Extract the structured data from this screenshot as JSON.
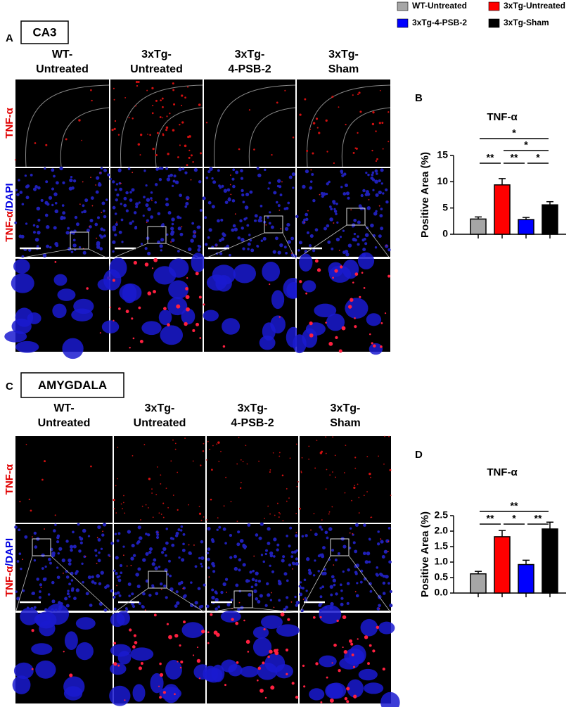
{
  "panels": [
    {
      "letter": "A",
      "region": "CA3",
      "columns": [
        [
          "WT-",
          "Untreated"
        ],
        [
          "3xTg-",
          "Untreated"
        ],
        [
          "3xTg-",
          "4-PSB-2"
        ],
        [
          "3xTg-",
          "Sham"
        ]
      ],
      "rows": [
        [
          "TNF-α"
        ],
        [
          "TNF-α",
          "/DAPI"
        ]
      ]
    },
    {
      "letter": "C",
      "region": "AMYGDALA",
      "columns": [
        [
          "WT-",
          "Untreated"
        ],
        [
          "3xTg-",
          "Untreated"
        ],
        [
          "3xTg-",
          "4-PSB-2"
        ],
        [
          "3xTg-",
          "Sham"
        ]
      ],
      "rows": [
        [
          "TNF-α"
        ],
        [
          "TNF-α",
          "/DAPI"
        ]
      ]
    }
  ],
  "chart_data": [
    {
      "type": "bar",
      "label": "B",
      "title": "TNF-α",
      "y_label": "Positive Area (%)",
      "ylim": [
        0,
        15
      ],
      "yticks": [
        0,
        5,
        10,
        15
      ],
      "series": [
        {
          "name": "WT-Untreated",
          "color": "#a6a6a6",
          "values": [
            2.9
          ],
          "errors": [
            0.4
          ]
        },
        {
          "name": "3xTg-Untreated",
          "color": "#ff0000",
          "values": [
            9.4
          ],
          "errors": [
            1.2
          ]
        },
        {
          "name": "3xTg-4-PSB-2",
          "color": "#0000ff",
          "values": [
            2.8
          ],
          "errors": [
            0.4
          ]
        },
        {
          "name": "3xTg-Sham",
          "color": "#000000",
          "values": [
            5.6
          ],
          "errors": [
            0.6
          ]
        }
      ],
      "significance": [
        {
          "label": "*",
          "from": 0,
          "to": 3
        },
        {
          "label": "*",
          "from": 1,
          "to": 3
        },
        {
          "label": "**",
          "from": 0,
          "to": 1
        },
        {
          "label": "**",
          "from": 1,
          "to": 2
        },
        {
          "label": "*",
          "from": 2,
          "to": 3
        }
      ]
    },
    {
      "type": "bar",
      "label": "D",
      "title": "TNF-α",
      "y_label": "Positive Area (%)",
      "ylim": [
        0,
        2.5
      ],
      "yticks": [
        {
          "value": 0,
          "label": "0.0"
        },
        0.5,
        {
          "value": 1,
          "label": "1.0"
        },
        1.5,
        {
          "value": 2,
          "label": "2.0"
        },
        2.5
      ],
      "series": [
        {
          "color": "#a6a6a6",
          "values": [
            0.62
          ],
          "errors": [
            0.08
          ]
        },
        {
          "color": "#ff0000",
          "values": [
            1.82
          ],
          "errors": [
            0.2
          ]
        },
        {
          "color": "#0000ff",
          "values": [
            0.92
          ],
          "errors": [
            0.14
          ]
        },
        {
          "color": "#000000",
          "values": [
            2.07
          ],
          "errors": [
            0.22
          ]
        }
      ],
      "significance": [
        {
          "label": "**",
          "from": 0,
          "to": 3
        },
        {
          "label": "**",
          "from": 0,
          "to": 1
        },
        {
          "label": "*",
          "from": 1,
          "to": 2
        },
        {
          "label": "**",
          "from": 2,
          "to": 3
        }
      ]
    }
  ]
}
